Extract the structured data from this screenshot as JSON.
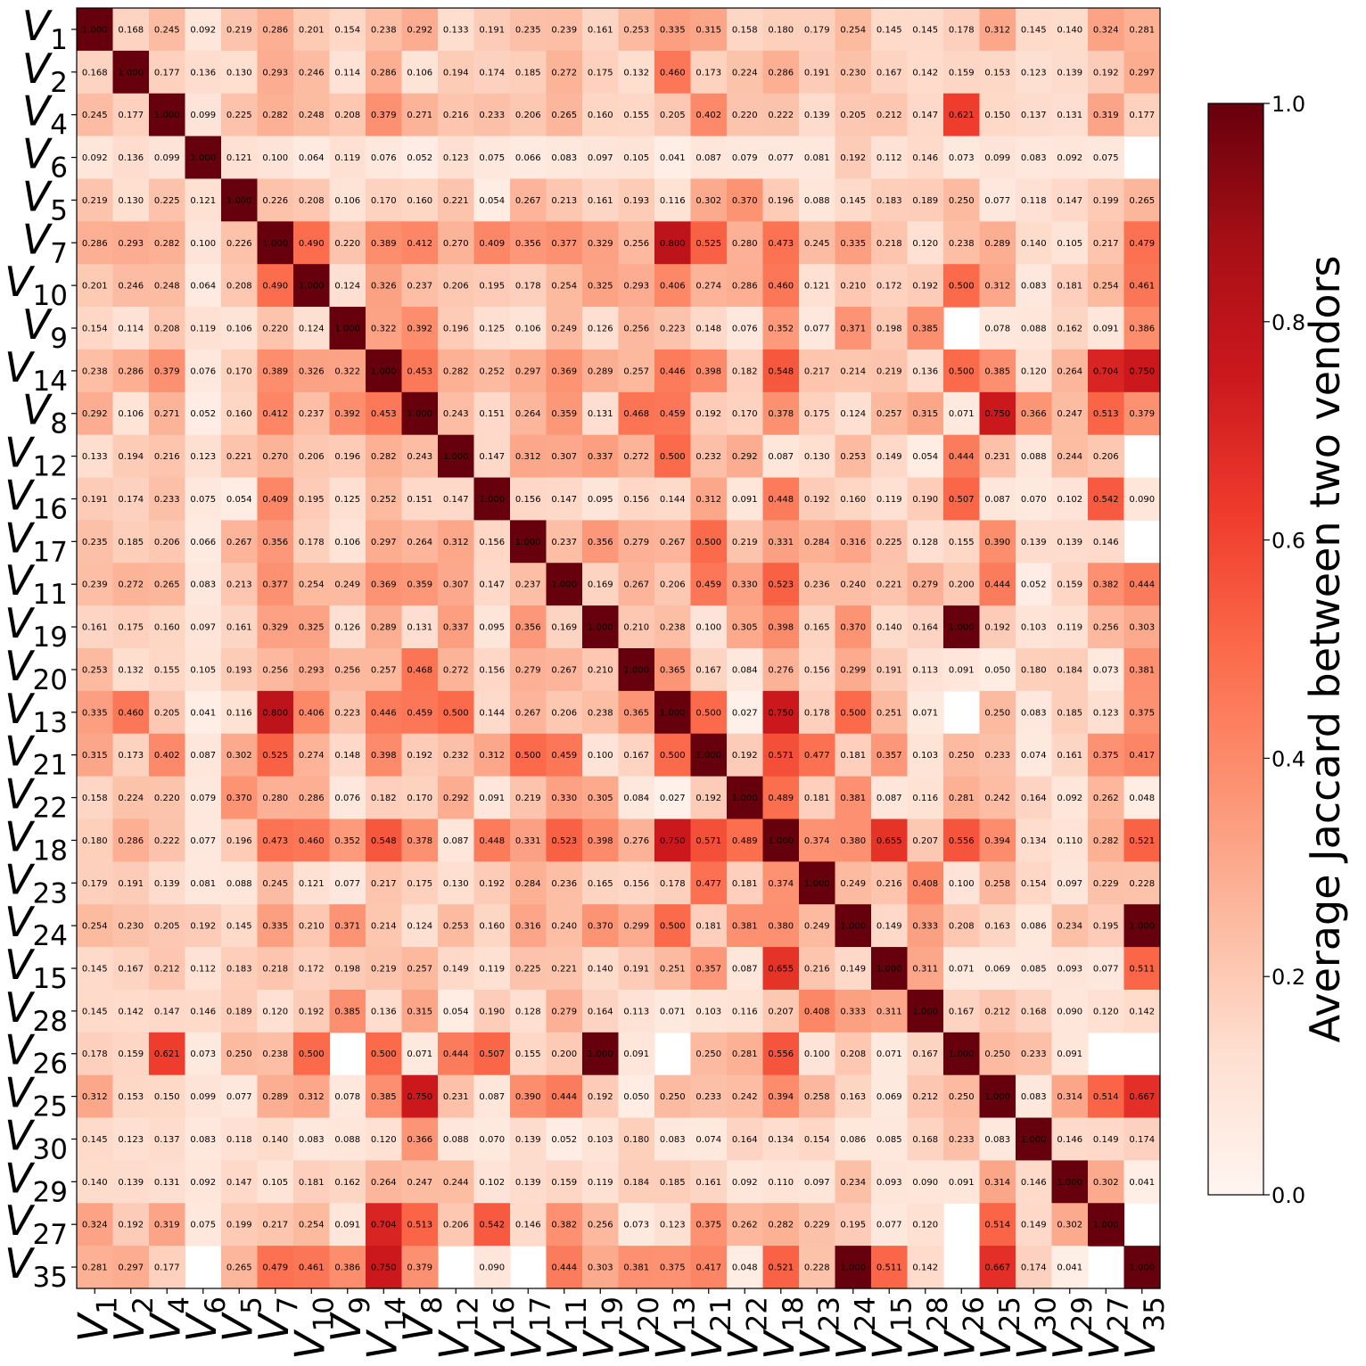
{
  "chart_data": {
    "type": "heatmap",
    "labels": [
      "V_1",
      "V_2",
      "V_4",
      "V_6",
      "V_5",
      "V_7",
      "V_10",
      "V_9",
      "V_14",
      "V_8",
      "V_12",
      "V_16",
      "V_17",
      "V_11",
      "V_19",
      "V_20",
      "V_13",
      "V_21",
      "V_22",
      "V_18",
      "V_23",
      "V_24",
      "V_15",
      "V_28",
      "V_26",
      "V_25",
      "V_30",
      "V_29",
      "V_27",
      "V_35"
    ],
    "matrix": [
      [
        1.0,
        0.168,
        0.245,
        0.092,
        0.219,
        0.286,
        0.201,
        0.154,
        0.238,
        0.292,
        0.133,
        0.191,
        0.235,
        0.239,
        0.161,
        0.253,
        0.335,
        0.315,
        0.158,
        0.18,
        0.179,
        0.254,
        0.145,
        0.145,
        0.178,
        0.312,
        0.145,
        0.14,
        0.324,
        0.281
      ],
      [
        0.168,
        1.0,
        0.177,
        0.136,
        0.13,
        0.293,
        0.246,
        0.114,
        0.286,
        0.106,
        0.194,
        0.174,
        0.185,
        0.272,
        0.175,
        0.132,
        0.46,
        0.173,
        0.224,
        0.286,
        0.191,
        0.23,
        0.167,
        0.142,
        0.159,
        0.153,
        0.123,
        0.139,
        0.192,
        0.297
      ],
      [
        0.245,
        0.177,
        1.0,
        0.099,
        0.225,
        0.282,
        0.248,
        0.208,
        0.379,
        0.271,
        0.216,
        0.233,
        0.206,
        0.265,
        0.16,
        0.155,
        0.205,
        0.402,
        0.22,
        0.222,
        0.139,
        0.205,
        0.212,
        0.147,
        0.621,
        0.15,
        0.137,
        0.131,
        0.319,
        0.177
      ],
      [
        0.092,
        0.136,
        0.099,
        1.0,
        0.121,
        0.1,
        0.064,
        0.119,
        0.076,
        0.052,
        0.123,
        0.075,
        0.066,
        0.083,
        0.097,
        0.105,
        0.041,
        0.087,
        0.079,
        0.077,
        0.081,
        0.192,
        0.112,
        0.146,
        0.073,
        0.099,
        0.083,
        0.092,
        0.075,
        null
      ],
      [
        0.219,
        0.13,
        0.225,
        0.121,
        1.0,
        0.226,
        0.208,
        0.106,
        0.17,
        0.16,
        0.221,
        0.054,
        0.267,
        0.213,
        0.161,
        0.193,
        0.116,
        0.302,
        0.37,
        0.196,
        0.088,
        0.145,
        0.183,
        0.189,
        0.25,
        0.077,
        0.118,
        0.147,
        0.199,
        0.265
      ],
      [
        0.286,
        0.293,
        0.282,
        0.1,
        0.226,
        1.0,
        0.49,
        0.22,
        0.389,
        0.412,
        0.27,
        0.409,
        0.356,
        0.377,
        0.329,
        0.256,
        0.8,
        0.525,
        0.28,
        0.473,
        0.245,
        0.335,
        0.218,
        0.12,
        0.238,
        0.289,
        0.14,
        0.105,
        0.217,
        0.479
      ],
      [
        0.201,
        0.246,
        0.248,
        0.064,
        0.208,
        0.49,
        1.0,
        0.124,
        0.326,
        0.237,
        0.206,
        0.195,
        0.178,
        0.254,
        0.325,
        0.293,
        0.406,
        0.274,
        0.286,
        0.46,
        0.121,
        0.21,
        0.172,
        0.192,
        0.5,
        0.312,
        0.083,
        0.181,
        0.254,
        0.461
      ],
      [
        0.154,
        0.114,
        0.208,
        0.119,
        0.106,
        0.22,
        0.124,
        1.0,
        0.322,
        0.392,
        0.196,
        0.125,
        0.106,
        0.249,
        0.126,
        0.256,
        0.223,
        0.148,
        0.076,
        0.352,
        0.077,
        0.371,
        0.198,
        0.385,
        null,
        0.078,
        0.088,
        0.162,
        0.091,
        0.386
      ],
      [
        0.238,
        0.286,
        0.379,
        0.076,
        0.17,
        0.389,
        0.326,
        0.322,
        1.0,
        0.453,
        0.282,
        0.252,
        0.297,
        0.369,
        0.289,
        0.257,
        0.446,
        0.398,
        0.182,
        0.548,
        0.217,
        0.214,
        0.219,
        0.136,
        0.5,
        0.385,
        0.12,
        0.264,
        0.704,
        0.75
      ],
      [
        0.292,
        0.106,
        0.271,
        0.052,
        0.16,
        0.412,
        0.237,
        0.392,
        0.453,
        1.0,
        0.243,
        0.151,
        0.264,
        0.359,
        0.131,
        0.468,
        0.459,
        0.192,
        0.17,
        0.378,
        0.175,
        0.124,
        0.257,
        0.315,
        0.071,
        0.75,
        0.366,
        0.247,
        0.513,
        0.379
      ],
      [
        0.133,
        0.194,
        0.216,
        0.123,
        0.221,
        0.27,
        0.206,
        0.196,
        0.282,
        0.243,
        1.0,
        0.147,
        0.312,
        0.307,
        0.337,
        0.272,
        0.5,
        0.232,
        0.292,
        0.087,
        0.13,
        0.253,
        0.149,
        0.054,
        0.444,
        0.231,
        0.088,
        0.244,
        0.206,
        null
      ],
      [
        0.191,
        0.174,
        0.233,
        0.075,
        0.054,
        0.409,
        0.195,
        0.125,
        0.252,
        0.151,
        0.147,
        1.0,
        0.156,
        0.147,
        0.095,
        0.156,
        0.144,
        0.312,
        0.091,
        0.448,
        0.192,
        0.16,
        0.119,
        0.19,
        0.507,
        0.087,
        0.07,
        0.102,
        0.542,
        0.09
      ],
      [
        0.235,
        0.185,
        0.206,
        0.066,
        0.267,
        0.356,
        0.178,
        0.106,
        0.297,
        0.264,
        0.312,
        0.156,
        1.0,
        0.237,
        0.356,
        0.279,
        0.267,
        0.5,
        0.219,
        0.331,
        0.284,
        0.316,
        0.225,
        0.128,
        0.155,
        0.39,
        0.139,
        0.139,
        0.146,
        null
      ],
      [
        0.239,
        0.272,
        0.265,
        0.083,
        0.213,
        0.377,
        0.254,
        0.249,
        0.369,
        0.359,
        0.307,
        0.147,
        0.237,
        1.0,
        0.169,
        0.267,
        0.206,
        0.459,
        0.33,
        0.523,
        0.236,
        0.24,
        0.221,
        0.279,
        0.2,
        0.444,
        0.052,
        0.159,
        0.382,
        0.444
      ],
      [
        0.161,
        0.175,
        0.16,
        0.097,
        0.161,
        0.329,
        0.325,
        0.126,
        0.289,
        0.131,
        0.337,
        0.095,
        0.356,
        0.169,
        1.0,
        0.21,
        0.238,
        0.1,
        0.305,
        0.398,
        0.165,
        0.37,
        0.14,
        0.164,
        1.0,
        0.192,
        0.103,
        0.119,
        0.256,
        0.303
      ],
      [
        0.253,
        0.132,
        0.155,
        0.105,
        0.193,
        0.256,
        0.293,
        0.256,
        0.257,
        0.468,
        0.272,
        0.156,
        0.279,
        0.267,
        0.21,
        1.0,
        0.365,
        0.167,
        0.084,
        0.276,
        0.156,
        0.299,
        0.191,
        0.113,
        0.091,
        0.05,
        0.18,
        0.184,
        0.073,
        0.381
      ],
      [
        0.335,
        0.46,
        0.205,
        0.041,
        0.116,
        0.8,
        0.406,
        0.223,
        0.446,
        0.459,
        0.5,
        0.144,
        0.267,
        0.206,
        0.238,
        0.365,
        1.0,
        0.5,
        0.027,
        0.75,
        0.178,
        0.5,
        0.251,
        0.071,
        null,
        0.25,
        0.083,
        0.185,
        0.123,
        0.375
      ],
      [
        0.315,
        0.173,
        0.402,
        0.087,
        0.302,
        0.525,
        0.274,
        0.148,
        0.398,
        0.192,
        0.232,
        0.312,
        0.5,
        0.459,
        0.1,
        0.167,
        0.5,
        1.0,
        0.192,
        0.571,
        0.477,
        0.181,
        0.357,
        0.103,
        0.25,
        0.233,
        0.074,
        0.161,
        0.375,
        0.417
      ],
      [
        0.158,
        0.224,
        0.22,
        0.079,
        0.37,
        0.28,
        0.286,
        0.076,
        0.182,
        0.17,
        0.292,
        0.091,
        0.219,
        0.33,
        0.305,
        0.084,
        0.027,
        0.192,
        1.0,
        0.489,
        0.181,
        0.381,
        0.087,
        0.116,
        0.281,
        0.242,
        0.164,
        0.092,
        0.262,
        0.048
      ],
      [
        0.18,
        0.286,
        0.222,
        0.077,
        0.196,
        0.473,
        0.46,
        0.352,
        0.548,
        0.378,
        0.087,
        0.448,
        0.331,
        0.523,
        0.398,
        0.276,
        0.75,
        0.571,
        0.489,
        1.0,
        0.374,
        0.38,
        0.655,
        0.207,
        0.556,
        0.394,
        0.134,
        0.11,
        0.282,
        0.521
      ],
      [
        0.179,
        0.191,
        0.139,
        0.081,
        0.088,
        0.245,
        0.121,
        0.077,
        0.217,
        0.175,
        0.13,
        0.192,
        0.284,
        0.236,
        0.165,
        0.156,
        0.178,
        0.477,
        0.181,
        0.374,
        1.0,
        0.249,
        0.216,
        0.408,
        0.1,
        0.258,
        0.154,
        0.097,
        0.229,
        0.228
      ],
      [
        0.254,
        0.23,
        0.205,
        0.192,
        0.145,
        0.335,
        0.21,
        0.371,
        0.214,
        0.124,
        0.253,
        0.16,
        0.316,
        0.24,
        0.37,
        0.299,
        0.5,
        0.181,
        0.381,
        0.38,
        0.249,
        1.0,
        0.149,
        0.333,
        0.208,
        0.163,
        0.086,
        0.234,
        0.195,
        1.0
      ],
      [
        0.145,
        0.167,
        0.212,
        0.112,
        0.183,
        0.218,
        0.172,
        0.198,
        0.219,
        0.257,
        0.149,
        0.119,
        0.225,
        0.221,
        0.14,
        0.191,
        0.251,
        0.357,
        0.087,
        0.655,
        0.216,
        0.149,
        1.0,
        0.311,
        0.071,
        0.069,
        0.085,
        0.093,
        0.077,
        0.511
      ],
      [
        0.145,
        0.142,
        0.147,
        0.146,
        0.189,
        0.12,
        0.192,
        0.385,
        0.136,
        0.315,
        0.054,
        0.19,
        0.128,
        0.279,
        0.164,
        0.113,
        0.071,
        0.103,
        0.116,
        0.207,
        0.408,
        0.333,
        0.311,
        1.0,
        0.167,
        0.212,
        0.168,
        0.09,
        0.12,
        0.142
      ],
      [
        0.178,
        0.159,
        0.621,
        0.073,
        0.25,
        0.238,
        0.5,
        null,
        0.5,
        0.071,
        0.444,
        0.507,
        0.155,
        0.2,
        1.0,
        0.091,
        null,
        0.25,
        0.281,
        0.556,
        0.1,
        0.208,
        0.071,
        0.167,
        1.0,
        0.25,
        0.233,
        0.091,
        null,
        null
      ],
      [
        0.312,
        0.153,
        0.15,
        0.099,
        0.077,
        0.289,
        0.312,
        0.078,
        0.385,
        0.75,
        0.231,
        0.087,
        0.39,
        0.444,
        0.192,
        0.05,
        0.25,
        0.233,
        0.242,
        0.394,
        0.258,
        0.163,
        0.069,
        0.212,
        0.25,
        1.0,
        0.083,
        0.314,
        0.514,
        0.667
      ],
      [
        0.145,
        0.123,
        0.137,
        0.083,
        0.118,
        0.14,
        0.083,
        0.088,
        0.12,
        0.366,
        0.088,
        0.07,
        0.139,
        0.052,
        0.103,
        0.18,
        0.083,
        0.074,
        0.164,
        0.134,
        0.154,
        0.086,
        0.085,
        0.168,
        0.233,
        0.083,
        1.0,
        0.146,
        0.149,
        0.174
      ],
      [
        0.14,
        0.139,
        0.131,
        0.092,
        0.147,
        0.105,
        0.181,
        0.162,
        0.264,
        0.247,
        0.244,
        0.102,
        0.139,
        0.159,
        0.119,
        0.184,
        0.185,
        0.161,
        0.092,
        0.11,
        0.097,
        0.234,
        0.093,
        0.09,
        0.091,
        0.314,
        0.146,
        1.0,
        0.302,
        0.041
      ],
      [
        0.324,
        0.192,
        0.319,
        0.075,
        0.199,
        0.217,
        0.254,
        0.091,
        0.704,
        0.513,
        0.206,
        0.542,
        0.146,
        0.382,
        0.256,
        0.073,
        0.123,
        0.375,
        0.262,
        0.282,
        0.229,
        0.195,
        0.077,
        0.12,
        null,
        0.514,
        0.149,
        0.302,
        1.0,
        null
      ],
      [
        0.281,
        0.297,
        0.177,
        null,
        0.265,
        0.479,
        0.461,
        0.386,
        0.75,
        0.379,
        null,
        0.09,
        null,
        0.444,
        0.303,
        0.381,
        0.375,
        0.417,
        0.048,
        0.521,
        0.228,
        1.0,
        0.511,
        0.142,
        null,
        0.667,
        0.174,
        0.041,
        null,
        1.0
      ]
    ],
    "colorbar": {
      "label": "Average Jaccard between two vendors",
      "range": [
        0,
        1
      ],
      "ticks": [
        "0.0",
        "0.2",
        "0.4",
        "0.6",
        "0.8",
        "1.0"
      ],
      "colormap": "Reds"
    }
  }
}
